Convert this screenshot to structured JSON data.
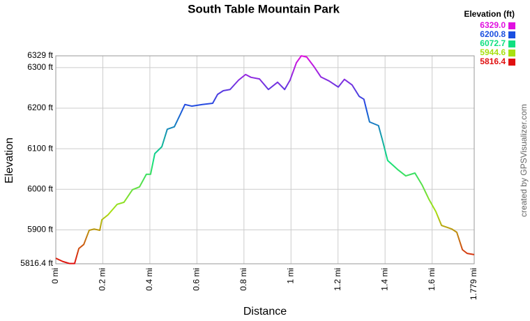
{
  "chart_data": {
    "type": "line",
    "title": "South Table Mountain Park",
    "x_label": "Distance",
    "y_label": "Elevation",
    "credit": "created by GPSVisualizer.com",
    "legend_title": "Elevation (ft)",
    "legend": [
      {
        "value": 6329.0,
        "label": "6329.0",
        "color": "#e010e0"
      },
      {
        "value": 6200.8,
        "label": "6200.8",
        "color": "#1a4fe0"
      },
      {
        "value": 6072.7,
        "label": "6072.7",
        "color": "#10e080"
      },
      {
        "value": 5944.6,
        "label": "5944.6",
        "color": "#a8e010"
      },
      {
        "value": 5816.4,
        "label": "5816.4",
        "color": "#e01010"
      }
    ],
    "xlim": [
      0,
      1.779
    ],
    "ylim": [
      5816.4,
      6329
    ],
    "grid": true,
    "xticks": [
      {
        "value": 0,
        "label": "0 mi"
      },
      {
        "value": 0.2,
        "label": "0.2 mi"
      },
      {
        "value": 0.4,
        "label": "0.4 mi"
      },
      {
        "value": 0.6,
        "label": "0.6 mi"
      },
      {
        "value": 0.8,
        "label": "0.8 mi"
      },
      {
        "value": 1,
        "label": "1 mi"
      },
      {
        "value": 1.2,
        "label": "1.2 mi"
      },
      {
        "value": 1.4,
        "label": "1.4 mi"
      },
      {
        "value": 1.6,
        "label": "1.6 mi"
      },
      {
        "value": 1.779,
        "label": "1.779 mi"
      }
    ],
    "yticks": [
      {
        "value": 5816.4,
        "label": "5816.4 ft"
      },
      {
        "value": 5900,
        "label": "5900 ft"
      },
      {
        "value": 6000,
        "label": "6000 ft"
      },
      {
        "value": 6100,
        "label": "6100 ft"
      },
      {
        "value": 6200,
        "label": "6200 ft"
      },
      {
        "value": 6300,
        "label": "6300 ft"
      },
      {
        "value": 6329,
        "label": "6329 ft"
      }
    ],
    "x": [
      0,
      0.03,
      0.059,
      0.08,
      0.098,
      0.119,
      0.142,
      0.163,
      0.187,
      0.196,
      0.222,
      0.261,
      0.29,
      0.326,
      0.356,
      0.385,
      0.403,
      0.421,
      0.451,
      0.474,
      0.504,
      0.528,
      0.549,
      0.578,
      0.623,
      0.667,
      0.688,
      0.712,
      0.741,
      0.777,
      0.807,
      0.83,
      0.866,
      0.904,
      0.943,
      0.973,
      0.996,
      1.023,
      1.044,
      1.067,
      1.097,
      1.127,
      1.162,
      1.201,
      1.227,
      1.26,
      1.29,
      1.31,
      1.334,
      1.372,
      1.388,
      1.411,
      1.453,
      1.488,
      1.527,
      1.557,
      1.586,
      1.616,
      1.64,
      1.684,
      1.705,
      1.729,
      1.749,
      1.779
    ],
    "values": [
      5830,
      5822,
      5817,
      5817,
      5854,
      5864,
      5899,
      5902,
      5899,
      5925,
      5937,
      5963,
      5968,
      5999,
      6006,
      6037,
      6037,
      6088,
      6105,
      6148,
      6154,
      6183,
      6209,
      6205,
      6209,
      6212,
      6234,
      6243,
      6246,
      6269,
      6283,
      6276,
      6272,
      6246,
      6264,
      6246,
      6269,
      6312,
      6329,
      6326,
      6303,
      6277,
      6267,
      6252,
      6271,
      6257,
      6229,
      6222,
      6166,
      6157,
      6123,
      6071,
      6049,
      6033,
      6040,
      6011,
      5976,
      5945,
      5911,
      5902,
      5894,
      5851,
      5842,
      5839
    ]
  }
}
